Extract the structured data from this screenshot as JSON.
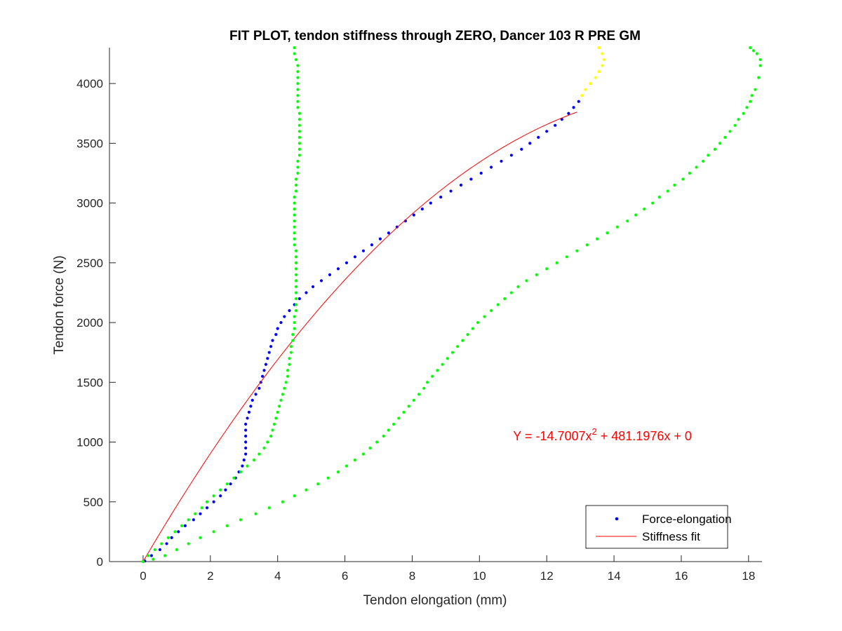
{
  "chart_data": {
    "type": "scatter",
    "title": "FIT PLOT, tendon stiffness through ZERO, Dancer 103 R PRE GM",
    "xlabel": "Tendon elongation (mm)",
    "ylabel": "Tendon force (N)",
    "xlim": [
      -1,
      18.4
    ],
    "ylim": [
      0,
      4300
    ],
    "xticks": [
      0,
      2,
      4,
      6,
      8,
      10,
      12,
      14,
      16,
      18
    ],
    "yticks": [
      0,
      500,
      1000,
      1500,
      2000,
      2500,
      3000,
      3500,
      4000
    ],
    "xtick_labels": [
      "0",
      "2",
      "4",
      "6",
      "8",
      "10",
      "12",
      "14",
      "16",
      "18"
    ],
    "ytick_labels": [
      "0",
      "500",
      "1000",
      "1500",
      "2000",
      "2500",
      "3000",
      "3500",
      "4000"
    ],
    "grid": false,
    "legend_position": "bottom-right",
    "annotation": {
      "prefix": "Y = -14.7007x",
      "exponent": "2",
      "suffix": " + 481.1976x + 0",
      "color": "#ff0000",
      "x": 11,
      "y": 1050
    },
    "fit": {
      "a": -14.7007,
      "b": 481.1976,
      "c": 0,
      "x_range": [
        0,
        12.9
      ],
      "color": "#ff0000"
    },
    "series": [
      {
        "name": "Force-elongation",
        "color": "#0000ff",
        "kind": "dots",
        "points": [
          [
            0.05,
            5
          ],
          [
            0.25,
            50
          ],
          [
            0.5,
            100
          ],
          [
            0.7,
            150
          ],
          [
            0.85,
            200
          ],
          [
            1.05,
            250
          ],
          [
            1.25,
            300
          ],
          [
            1.5,
            350
          ],
          [
            1.7,
            400
          ],
          [
            1.9,
            450
          ],
          [
            2.1,
            500
          ],
          [
            2.3,
            550
          ],
          [
            2.45,
            600
          ],
          [
            2.6,
            650
          ],
          [
            2.75,
            700
          ],
          [
            2.85,
            750
          ],
          [
            2.95,
            800
          ],
          [
            3.0,
            850
          ],
          [
            3.05,
            900
          ],
          [
            3.05,
            950
          ],
          [
            3.05,
            1000
          ],
          [
            3.05,
            1050
          ],
          [
            3.05,
            1100
          ],
          [
            3.05,
            1150
          ],
          [
            3.1,
            1200
          ],
          [
            3.15,
            1250
          ],
          [
            3.2,
            1300
          ],
          [
            3.25,
            1350
          ],
          [
            3.35,
            1400
          ],
          [
            3.45,
            1450
          ],
          [
            3.5,
            1500
          ],
          [
            3.55,
            1550
          ],
          [
            3.6,
            1600
          ],
          [
            3.65,
            1650
          ],
          [
            3.7,
            1700
          ],
          [
            3.75,
            1750
          ],
          [
            3.8,
            1800
          ],
          [
            3.85,
            1850
          ],
          [
            3.95,
            1900
          ],
          [
            4.0,
            1950
          ],
          [
            4.1,
            2000
          ],
          [
            4.2,
            2050
          ],
          [
            4.35,
            2100
          ],
          [
            4.5,
            2150
          ],
          [
            4.65,
            2200
          ],
          [
            4.85,
            2250
          ],
          [
            5.05,
            2300
          ],
          [
            5.3,
            2350
          ],
          [
            5.55,
            2400
          ],
          [
            5.8,
            2450
          ],
          [
            6.05,
            2500
          ],
          [
            6.3,
            2550
          ],
          [
            6.55,
            2600
          ],
          [
            6.8,
            2650
          ],
          [
            7.05,
            2700
          ],
          [
            7.3,
            2750
          ],
          [
            7.55,
            2800
          ],
          [
            7.8,
            2850
          ],
          [
            8.05,
            2900
          ],
          [
            8.3,
            2950
          ],
          [
            8.55,
            3000
          ],
          [
            8.85,
            3050
          ],
          [
            9.15,
            3100
          ],
          [
            9.45,
            3150
          ],
          [
            9.75,
            3200
          ],
          [
            10.05,
            3250
          ],
          [
            10.35,
            3300
          ],
          [
            10.65,
            3350
          ],
          [
            10.95,
            3400
          ],
          [
            11.25,
            3450
          ],
          [
            11.5,
            3500
          ],
          [
            11.75,
            3550
          ],
          [
            12.0,
            3600
          ],
          [
            12.25,
            3650
          ],
          [
            12.45,
            3700
          ],
          [
            12.65,
            3750
          ],
          [
            12.8,
            3800
          ],
          [
            12.95,
            3850
          ]
        ]
      },
      {
        "name": "Stiffness fit",
        "color": "#ff0000",
        "kind": "line"
      },
      {
        "name": "",
        "color": "#00ff00",
        "kind": "dots",
        "points": [
          [
            0.0,
            0
          ],
          [
            0.15,
            50
          ],
          [
            0.35,
            100
          ],
          [
            0.55,
            150
          ],
          [
            0.75,
            200
          ],
          [
            0.95,
            250
          ],
          [
            1.15,
            300
          ],
          [
            1.35,
            350
          ],
          [
            1.55,
            400
          ],
          [
            1.75,
            450
          ],
          [
            1.9,
            500
          ],
          [
            2.1,
            550
          ],
          [
            2.3,
            600
          ],
          [
            2.5,
            650
          ],
          [
            2.7,
            700
          ],
          [
            2.9,
            750
          ],
          [
            3.1,
            800
          ],
          [
            3.3,
            850
          ],
          [
            3.45,
            900
          ],
          [
            3.6,
            950
          ],
          [
            3.7,
            1000
          ],
          [
            3.8,
            1050
          ],
          [
            3.85,
            1100
          ],
          [
            3.9,
            1150
          ],
          [
            3.95,
            1200
          ],
          [
            4.0,
            1250
          ],
          [
            4.05,
            1300
          ],
          [
            4.1,
            1350
          ],
          [
            4.15,
            1400
          ],
          [
            4.2,
            1450
          ],
          [
            4.25,
            1500
          ],
          [
            4.3,
            1550
          ],
          [
            4.3,
            1600
          ],
          [
            4.35,
            1650
          ],
          [
            4.35,
            1700
          ],
          [
            4.4,
            1750
          ],
          [
            4.4,
            1800
          ],
          [
            4.45,
            1850
          ],
          [
            4.45,
            1900
          ],
          [
            4.5,
            1950
          ],
          [
            4.5,
            2000
          ],
          [
            4.5,
            2050
          ],
          [
            4.55,
            2100
          ],
          [
            4.55,
            2150
          ],
          [
            4.55,
            2200
          ],
          [
            4.55,
            2250
          ],
          [
            4.55,
            2300
          ],
          [
            4.55,
            2350
          ],
          [
            4.55,
            2400
          ],
          [
            4.55,
            2450
          ],
          [
            4.55,
            2500
          ],
          [
            4.55,
            2550
          ],
          [
            4.55,
            2600
          ],
          [
            4.5,
            2650
          ],
          [
            4.5,
            2700
          ],
          [
            4.5,
            2750
          ],
          [
            4.5,
            2800
          ],
          [
            4.5,
            2850
          ],
          [
            4.5,
            2900
          ],
          [
            4.5,
            2950
          ],
          [
            4.5,
            3000
          ],
          [
            4.5,
            3050
          ],
          [
            4.55,
            3100
          ],
          [
            4.55,
            3150
          ],
          [
            4.55,
            3200
          ],
          [
            4.6,
            3250
          ],
          [
            4.6,
            3300
          ],
          [
            4.6,
            3350
          ],
          [
            4.65,
            3400
          ],
          [
            4.65,
            3450
          ],
          [
            4.65,
            3500
          ],
          [
            4.65,
            3550
          ],
          [
            4.65,
            3600
          ],
          [
            4.65,
            3650
          ],
          [
            4.65,
            3700
          ],
          [
            4.65,
            3750
          ],
          [
            4.6,
            3800
          ],
          [
            4.6,
            3850
          ],
          [
            4.6,
            3900
          ],
          [
            4.6,
            3950
          ],
          [
            4.6,
            4000
          ],
          [
            4.6,
            4050
          ],
          [
            4.6,
            4100
          ],
          [
            4.6,
            4150
          ],
          [
            4.55,
            4200
          ],
          [
            4.5,
            4250
          ],
          [
            4.5,
            4300
          ]
        ]
      },
      {
        "name": "",
        "color": "#00ff00",
        "kind": "dots",
        "points": [
          [
            0.0,
            0
          ],
          [
            0.3,
            20
          ],
          [
            0.65,
            50
          ],
          [
            1.0,
            100
          ],
          [
            1.35,
            150
          ],
          [
            1.7,
            200
          ],
          [
            2.1,
            250
          ],
          [
            2.5,
            300
          ],
          [
            2.9,
            350
          ],
          [
            3.35,
            400
          ],
          [
            3.75,
            450
          ],
          [
            4.15,
            500
          ],
          [
            4.5,
            550
          ],
          [
            4.85,
            600
          ],
          [
            5.2,
            650
          ],
          [
            5.5,
            700
          ],
          [
            5.8,
            750
          ],
          [
            6.05,
            800
          ],
          [
            6.3,
            850
          ],
          [
            6.55,
            900
          ],
          [
            6.75,
            950
          ],
          [
            6.95,
            1000
          ],
          [
            7.15,
            1050
          ],
          [
            7.3,
            1100
          ],
          [
            7.45,
            1150
          ],
          [
            7.6,
            1200
          ],
          [
            7.75,
            1250
          ],
          [
            7.9,
            1300
          ],
          [
            8.05,
            1350
          ],
          [
            8.2,
            1400
          ],
          [
            8.35,
            1450
          ],
          [
            8.45,
            1500
          ],
          [
            8.6,
            1550
          ],
          [
            8.75,
            1600
          ],
          [
            8.9,
            1650
          ],
          [
            9.05,
            1700
          ],
          [
            9.2,
            1750
          ],
          [
            9.35,
            1800
          ],
          [
            9.5,
            1850
          ],
          [
            9.65,
            1900
          ],
          [
            9.8,
            1950
          ],
          [
            9.95,
            2000
          ],
          [
            10.15,
            2050
          ],
          [
            10.35,
            2100
          ],
          [
            10.55,
            2150
          ],
          [
            10.75,
            2200
          ],
          [
            10.95,
            2250
          ],
          [
            11.15,
            2300
          ],
          [
            11.4,
            2350
          ],
          [
            11.7,
            2400
          ],
          [
            12.0,
            2450
          ],
          [
            12.3,
            2500
          ],
          [
            12.6,
            2550
          ],
          [
            12.9,
            2600
          ],
          [
            13.2,
            2650
          ],
          [
            13.5,
            2700
          ],
          [
            13.8,
            2750
          ],
          [
            14.1,
            2800
          ],
          [
            14.4,
            2850
          ],
          [
            14.65,
            2900
          ],
          [
            14.9,
            2950
          ],
          [
            15.15,
            3000
          ],
          [
            15.35,
            3050
          ],
          [
            15.6,
            3100
          ],
          [
            15.8,
            3150
          ],
          [
            16.05,
            3200
          ],
          [
            16.25,
            3250
          ],
          [
            16.45,
            3300
          ],
          [
            16.65,
            3350
          ],
          [
            16.8,
            3400
          ],
          [
            17.0,
            3450
          ],
          [
            17.15,
            3500
          ],
          [
            17.3,
            3550
          ],
          [
            17.45,
            3600
          ],
          [
            17.6,
            3650
          ],
          [
            17.7,
            3700
          ],
          [
            17.85,
            3750
          ],
          [
            17.95,
            3800
          ],
          [
            18.05,
            3850
          ],
          [
            18.1,
            3900
          ],
          [
            18.2,
            3950
          ],
          [
            18.3,
            4050
          ],
          [
            18.35,
            4150
          ],
          [
            18.35,
            4200
          ],
          [
            18.25,
            4250
          ],
          [
            18.15,
            4275
          ],
          [
            18.05,
            4300
          ]
        ]
      },
      {
        "name": "",
        "color": "#ffff00",
        "kind": "dots",
        "points": [
          [
            13.05,
            3900
          ],
          [
            13.15,
            3950
          ],
          [
            13.3,
            4000
          ],
          [
            13.45,
            4050
          ],
          [
            13.55,
            4100
          ],
          [
            13.65,
            4150
          ],
          [
            13.7,
            4200
          ],
          [
            13.65,
            4250
          ],
          [
            13.55,
            4300
          ]
        ]
      }
    ],
    "legend": [
      {
        "label": "Force-elongation",
        "kind": "dots",
        "color": "#0000ff"
      },
      {
        "label": "Stiffness fit",
        "kind": "line",
        "color": "#ff0000"
      }
    ]
  }
}
